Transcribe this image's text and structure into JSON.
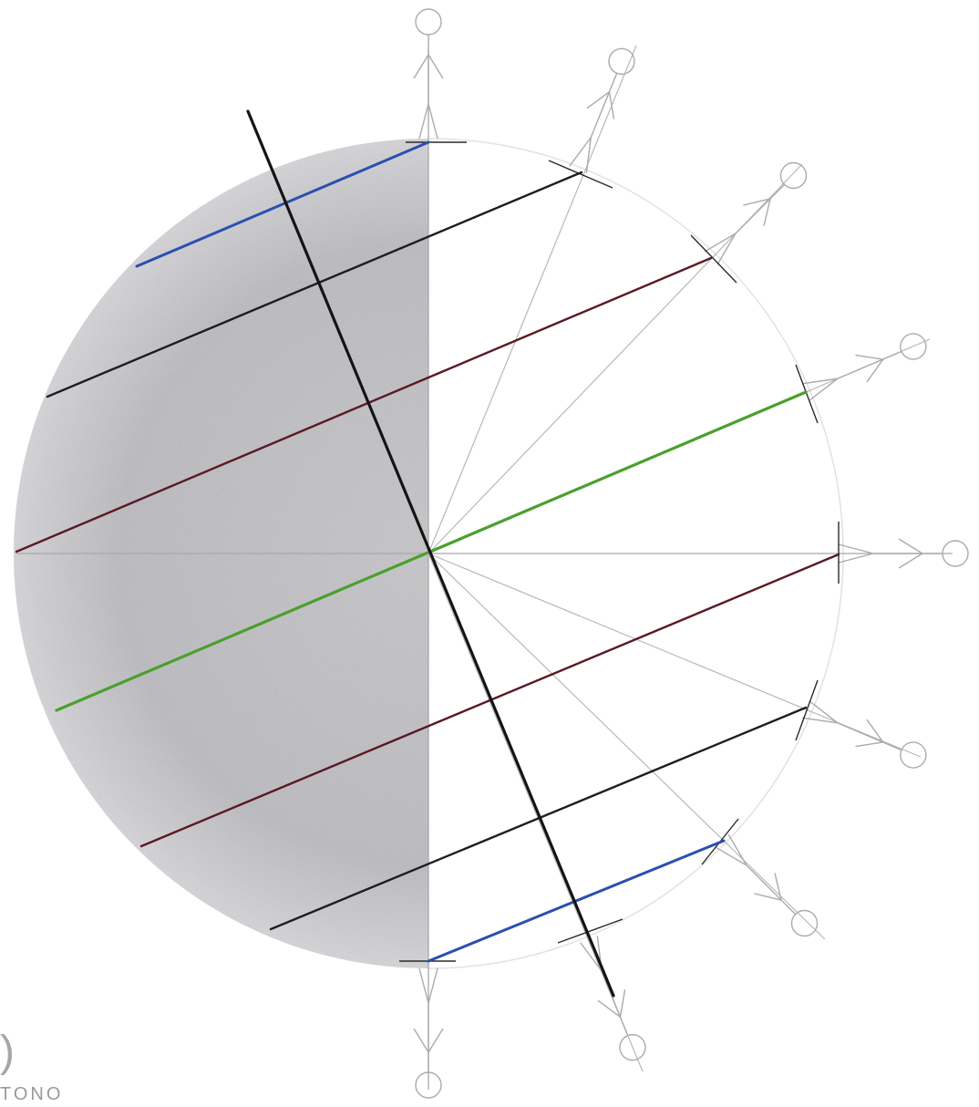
{
  "figure": {
    "description_free": true,
    "corner_text": "TONO",
    "corner_glyph": ")",
    "colors": {
      "shade": "#b9b9bd",
      "axis": "#1a1a1a",
      "pencil": "#b3b3b3",
      "black_line": "#1e1e1e",
      "maroon_line": "#5a1a24",
      "green_line": "#4aa02c",
      "blue_line": "#2c4fb0"
    },
    "stick_figures": 9
  }
}
